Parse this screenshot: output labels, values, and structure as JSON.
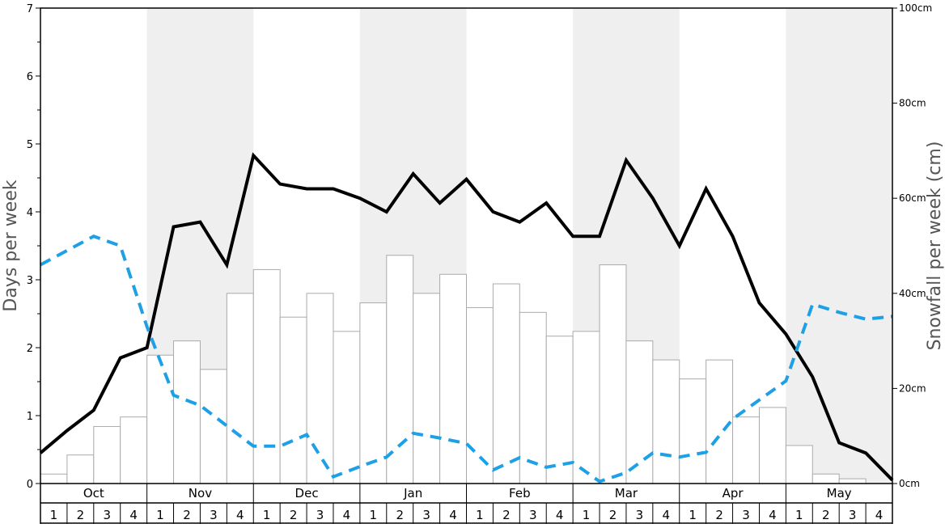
{
  "chart_data": {
    "type": "bar",
    "left_axis": {
      "title": "Days per week",
      "min": 0,
      "max": 7,
      "ticks": [
        0,
        1,
        2,
        3,
        4,
        5,
        6,
        7
      ]
    },
    "right_axis": {
      "title": "Snowfall per week (cm)",
      "min": 0,
      "max": 100,
      "ticks": [
        0,
        20,
        40,
        60,
        80,
        100
      ],
      "tick_labels": [
        "0cm",
        "20cm",
        "40cm",
        "60cm",
        "80cm",
        "100cm"
      ]
    },
    "months": [
      "Oct",
      "Nov",
      "Dec",
      "Jan",
      "Feb",
      "Mar",
      "Apr",
      "May"
    ],
    "weeks": [
      "1",
      "2",
      "3",
      "4"
    ],
    "shaded_months": [
      "Nov",
      "Jan",
      "Mar",
      "May"
    ],
    "series": [
      {
        "kind": "bar",
        "axis": "right",
        "unit": "cm",
        "color": "#ffffff",
        "stroke": "#aaaaaa",
        "values": [
          2,
          6,
          12,
          14,
          27,
          30,
          24,
          40,
          45,
          35,
          40,
          32,
          38,
          48,
          40,
          44,
          37,
          42,
          36,
          31,
          32,
          46,
          30,
          26,
          22,
          26,
          14,
          16,
          8,
          2,
          1,
          0
        ]
      },
      {
        "kind": "line",
        "axis": "left",
        "style": "solid",
        "color": "#000000",
        "values": [
          0.45,
          0.78,
          1.08,
          1.85,
          2.0,
          3.78,
          3.85,
          3.22,
          4.83,
          4.41,
          4.34,
          4.34,
          4.2,
          4.0,
          4.56,
          4.13,
          4.48,
          4.0,
          3.85,
          4.13,
          3.64,
          3.64,
          4.76,
          4.2,
          3.5,
          4.34,
          3.64,
          2.66,
          2.2,
          1.57,
          0.6,
          0.45,
          0.05
        ]
      },
      {
        "kind": "line",
        "axis": "left",
        "style": "dashed",
        "color": "#1ea0e6",
        "values": [
          3.22,
          3.43,
          3.64,
          3.5,
          2.31,
          1.3,
          1.15,
          0.85,
          0.55,
          0.55,
          0.72,
          0.1,
          0.25,
          0.39,
          0.74,
          0.67,
          0.59,
          0.2,
          0.38,
          0.24,
          0.31,
          0.03,
          0.16,
          0.45,
          0.39,
          0.46,
          0.95,
          1.23,
          1.51,
          2.64,
          2.52,
          2.42,
          2.46
        ]
      }
    ],
    "colors": {
      "shade": "#efefef",
      "solid_line": "#000000",
      "dashed_line": "#1ea0e6",
      "bar_fill": "#ffffff",
      "bar_stroke": "#aaaaaa"
    }
  }
}
